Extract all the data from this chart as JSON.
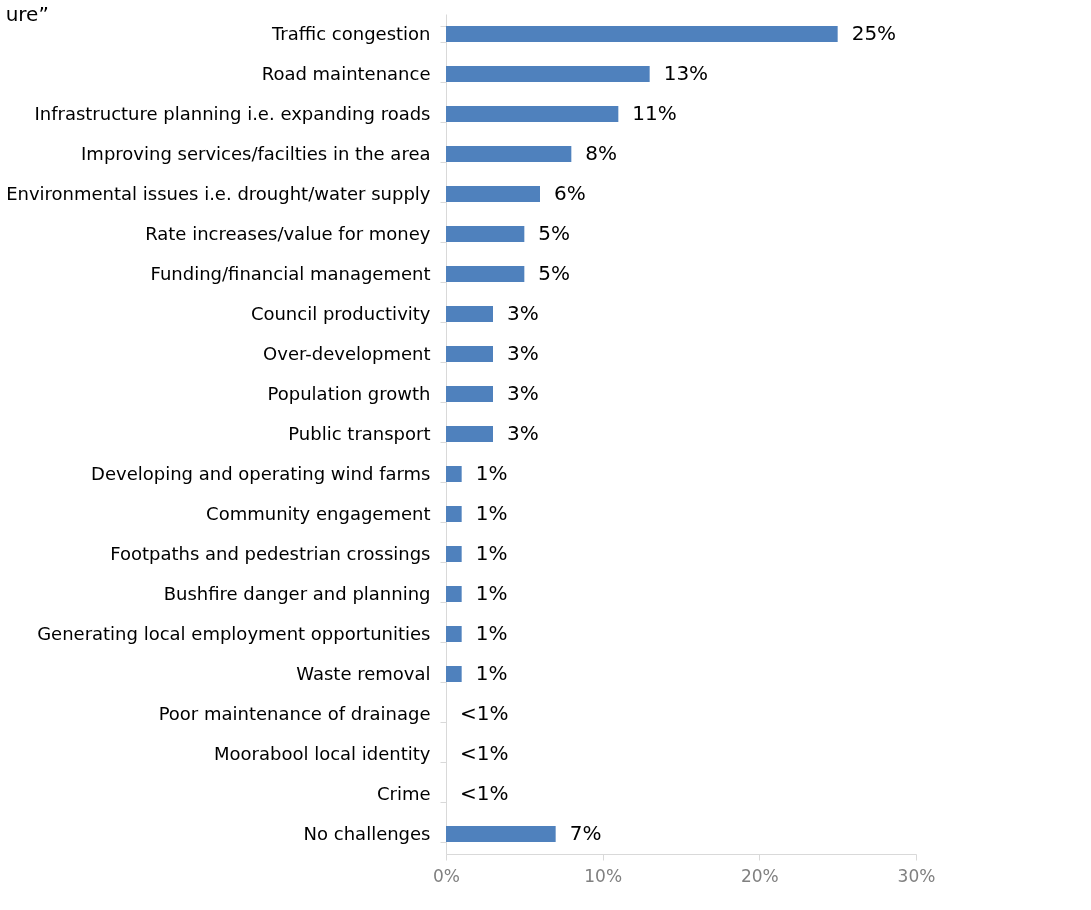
{
  "chart_data": {
    "type": "bar",
    "orientation": "horizontal",
    "title": "ure”",
    "categories": [
      "Traffic congestion",
      "Road maintenance",
      "Infrastructure planning i.e. expanding roads",
      "Improving services/facilties in the area",
      "Environmental issues i.e. drought/water supply",
      "Rate increases/value for money",
      "Funding/financial management",
      "Council productivity",
      "Over-development",
      "Population growth",
      "Public transport",
      "Developing and operating wind farms",
      "Community engagement",
      "Footpaths and pedestrian crossings",
      "Bushfire danger and planning",
      "Generating local employment opportunities",
      "Waste removal",
      "Poor maintenance of drainage",
      "Moorabool local identity",
      "Crime",
      "No challenges"
    ],
    "values": [
      25,
      13,
      11,
      8,
      6,
      5,
      5,
      3,
      3,
      3,
      3,
      1,
      1,
      1,
      1,
      1,
      1,
      0,
      0,
      0,
      7
    ],
    "value_labels": [
      "25%",
      "13%",
      "11%",
      "8%",
      "6%",
      "5%",
      "5%",
      "3%",
      "3%",
      "3%",
      "3%",
      "1%",
      "1%",
      "1%",
      "1%",
      "1%",
      "1%",
      "<1%",
      "<1%",
      "<1%",
      "7%"
    ],
    "color": "#4f81bd",
    "xlim": [
      0,
      30
    ],
    "xticks": [
      {
        "value": 0,
        "label": "0%"
      },
      {
        "value": 10,
        "label": "10%"
      },
      {
        "value": 20,
        "label": "20%"
      },
      {
        "value": 30,
        "label": "30%"
      }
    ],
    "grid": false
  }
}
